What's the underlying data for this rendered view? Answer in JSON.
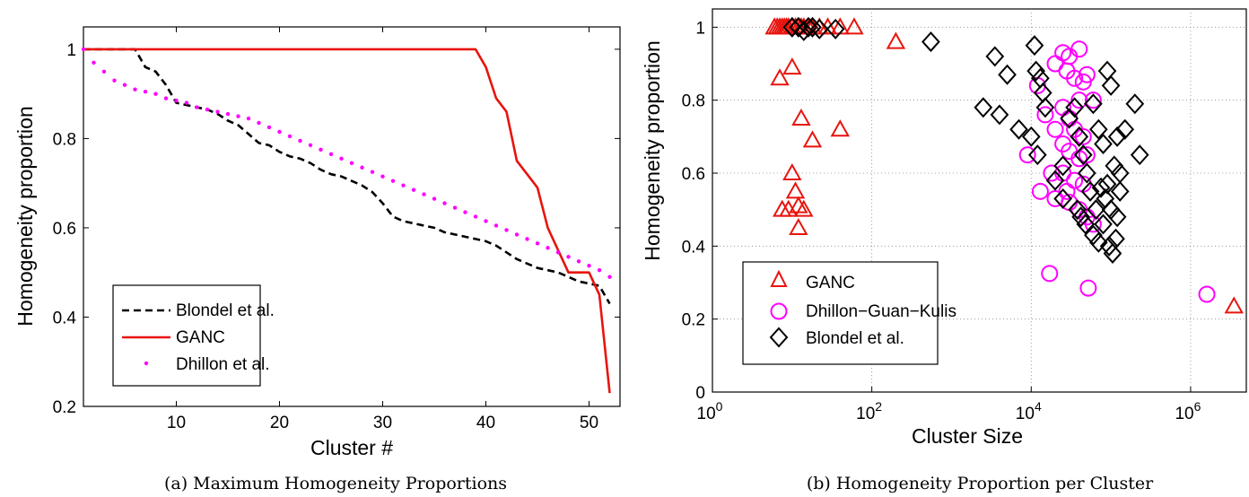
{
  "chart_data": [
    {
      "type": "line",
      "caption": "(a) Maximum Homogeneity Proportions",
      "xlabel": "Cluster #",
      "ylabel": "Homogeneity proportion",
      "xlim": [
        1,
        53
      ],
      "ylim": [
        0.2,
        1.05
      ],
      "xticks": [
        "10",
        "20",
        "30",
        "40",
        "50"
      ],
      "yticks": [
        "0.2",
        "0.4",
        "0.6",
        "0.8",
        "1"
      ],
      "legend_position": "lower-left",
      "series": [
        {
          "name": "Blondel et al.",
          "style": "dashed",
          "color": "#000000",
          "x": [
            1,
            2,
            3,
            4,
            5,
            6,
            7,
            8,
            9,
            10,
            11,
            12,
            13,
            14,
            15,
            16,
            17,
            18,
            19,
            20,
            21,
            22,
            23,
            24,
            25,
            26,
            27,
            28,
            29,
            30,
            31,
            32,
            33,
            34,
            35,
            36,
            37,
            38,
            39,
            40,
            41,
            42,
            43,
            44,
            45,
            46,
            47,
            48,
            49,
            50,
            51,
            52
          ],
          "values": [
            1.0,
            1.0,
            1.0,
            1.0,
            1.0,
            1.0,
            0.96,
            0.95,
            0.92,
            0.88,
            0.875,
            0.87,
            0.865,
            0.855,
            0.84,
            0.83,
            0.81,
            0.79,
            0.785,
            0.77,
            0.76,
            0.755,
            0.745,
            0.73,
            0.72,
            0.715,
            0.705,
            0.695,
            0.68,
            0.655,
            0.625,
            0.615,
            0.61,
            0.605,
            0.6,
            0.59,
            0.585,
            0.58,
            0.575,
            0.57,
            0.56,
            0.545,
            0.53,
            0.52,
            0.51,
            0.505,
            0.5,
            0.49,
            0.48,
            0.475,
            0.47,
            0.43
          ]
        },
        {
          "name": "GANC",
          "style": "solid",
          "color": "#e8140e",
          "x": [
            1,
            5,
            10,
            20,
            30,
            38,
            39,
            40,
            41,
            42,
            43,
            44,
            45,
            46,
            47,
            48,
            49,
            50,
            51,
            52
          ],
          "values": [
            1.0,
            1.0,
            1.0,
            1.0,
            1.0,
            1.0,
            1.0,
            0.96,
            0.89,
            0.86,
            0.75,
            0.72,
            0.69,
            0.6,
            0.55,
            0.5,
            0.5,
            0.5,
            0.45,
            0.23
          ]
        },
        {
          "name": "Dhillon et al.",
          "style": "dotted",
          "color": "#ff00ff",
          "x": [
            1,
            2,
            3,
            4,
            5,
            6,
            7,
            8,
            9,
            10,
            11,
            12,
            13,
            14,
            15,
            16,
            17,
            18,
            19,
            20,
            21,
            22,
            23,
            24,
            25,
            26,
            27,
            28,
            29,
            30,
            31,
            32,
            33,
            34,
            35,
            36,
            37,
            38,
            39,
            40,
            41,
            42,
            43,
            44,
            45,
            46,
            47,
            48,
            49,
            50,
            51,
            52
          ],
          "values": [
            1.0,
            0.97,
            0.95,
            0.93,
            0.92,
            0.91,
            0.905,
            0.9,
            0.89,
            0.885,
            0.88,
            0.87,
            0.865,
            0.86,
            0.855,
            0.85,
            0.845,
            0.835,
            0.825,
            0.815,
            0.805,
            0.795,
            0.785,
            0.775,
            0.765,
            0.755,
            0.745,
            0.735,
            0.725,
            0.715,
            0.705,
            0.695,
            0.685,
            0.675,
            0.665,
            0.655,
            0.645,
            0.635,
            0.625,
            0.615,
            0.605,
            0.595,
            0.585,
            0.575,
            0.565,
            0.555,
            0.545,
            0.535,
            0.525,
            0.515,
            0.505,
            0.49
          ]
        }
      ]
    },
    {
      "type": "scatter",
      "caption": "(b) Homogeneity Proportion per Cluster",
      "xlabel": "Cluster Size",
      "ylabel": "Homogeneity proportion",
      "xscale": "log",
      "xlim": [
        1,
        5000000
      ],
      "ylim": [
        0,
        1.05
      ],
      "grid": true,
      "xticks": [
        {
          "base": "10",
          "exp": "0",
          "value": 1
        },
        {
          "base": "10",
          "exp": "2",
          "value": 100
        },
        {
          "base": "10",
          "exp": "4",
          "value": 10000
        },
        {
          "base": "10",
          "exp": "6",
          "value": 1000000
        }
      ],
      "yticks": [
        "0",
        "0.2",
        "0.4",
        "0.6",
        "0.8",
        "1"
      ],
      "legend_position": "lower-left",
      "series": [
        {
          "name": "GANC",
          "marker": "triangle",
          "color": "#e8140e",
          "points": [
            [
              6,
              1.0
            ],
            [
              6.5,
              1.0
            ],
            [
              7,
              1.0
            ],
            [
              7.5,
              1.0
            ],
            [
              8,
              1.0
            ],
            [
              8.5,
              1.0
            ],
            [
              9,
              1.0
            ],
            [
              10,
              1.0
            ],
            [
              11,
              1.0
            ],
            [
              12,
              1.0
            ],
            [
              13,
              1.0
            ],
            [
              14,
              1.0
            ],
            [
              16,
              1.0
            ],
            [
              18,
              1.0
            ],
            [
              22,
              1.0
            ],
            [
              28,
              1.0
            ],
            [
              40,
              1.0
            ],
            [
              60,
              1.0
            ],
            [
              200,
              0.96
            ],
            [
              7,
              0.86
            ],
            [
              10,
              0.89
            ],
            [
              13,
              0.75
            ],
            [
              18,
              0.69
            ],
            [
              40,
              0.72
            ],
            [
              10,
              0.6
            ],
            [
              11,
              0.55
            ],
            [
              7.5,
              0.5
            ],
            [
              9,
              0.5
            ],
            [
              12,
              0.51
            ],
            [
              14,
              0.5
            ],
            [
              12,
              0.45
            ],
            [
              3500000,
              0.235
            ]
          ]
        },
        {
          "name": "Dhillon−Guan−Kulis",
          "marker": "circle",
          "color": "#ff00ff",
          "points": [
            [
              20000,
              0.9
            ],
            [
              25000,
              0.93
            ],
            [
              30000,
              0.92
            ],
            [
              40000,
              0.94
            ],
            [
              28000,
              0.88
            ],
            [
              35000,
              0.86
            ],
            [
              45000,
              0.85
            ],
            [
              50000,
              0.87
            ],
            [
              60000,
              0.8
            ],
            [
              40000,
              0.8
            ],
            [
              12000,
              0.84
            ],
            [
              15000,
              0.76
            ],
            [
              25000,
              0.78
            ],
            [
              30000,
              0.75
            ],
            [
              20000,
              0.72
            ],
            [
              35000,
              0.72
            ],
            [
              45000,
              0.7
            ],
            [
              25000,
              0.68
            ],
            [
              30000,
              0.66
            ],
            [
              40000,
              0.64
            ],
            [
              50000,
              0.65
            ],
            [
              9000,
              0.65
            ],
            [
              18000,
              0.6
            ],
            [
              25000,
              0.6
            ],
            [
              35000,
              0.58
            ],
            [
              45000,
              0.57
            ],
            [
              13000,
              0.55
            ],
            [
              20000,
              0.53
            ],
            [
              30000,
              0.52
            ],
            [
              40000,
              0.5
            ],
            [
              50000,
              0.48
            ],
            [
              60000,
              0.46
            ],
            [
              28000,
              0.55
            ],
            [
              17000,
              0.325
            ],
            [
              52000,
              0.285
            ],
            [
              1600000,
              0.268
            ]
          ]
        },
        {
          "name": "Blondel et al.",
          "marker": "diamond",
          "color": "#000000",
          "points": [
            [
              10,
              1.0
            ],
            [
              12,
              1.0
            ],
            [
              14,
              0.99
            ],
            [
              16,
              1.0
            ],
            [
              18,
              1.0
            ],
            [
              22,
              0.995
            ],
            [
              35,
              0.995
            ],
            [
              550,
              0.96
            ],
            [
              3500,
              0.92
            ],
            [
              5000,
              0.87
            ],
            [
              2500,
              0.78
            ],
            [
              4000,
              0.76
            ],
            [
              7000,
              0.72
            ],
            [
              11000,
              0.95
            ],
            [
              11500,
              0.88
            ],
            [
              13000,
              0.86
            ],
            [
              14000,
              0.82
            ],
            [
              15000,
              0.78
            ],
            [
              10000,
              0.7
            ],
            [
              12000,
              0.65
            ],
            [
              20000,
              0.58
            ],
            [
              25000,
              0.53
            ],
            [
              30000,
              0.75
            ],
            [
              35000,
              0.78
            ],
            [
              40000,
              0.7
            ],
            [
              45000,
              0.65
            ],
            [
              50000,
              0.6
            ],
            [
              55000,
              0.55
            ],
            [
              60000,
              0.79
            ],
            [
              70000,
              0.72
            ],
            [
              80000,
              0.68
            ],
            [
              90000,
              0.88
            ],
            [
              100000,
              0.84
            ],
            [
              120000,
              0.7
            ],
            [
              150000,
              0.72
            ],
            [
              200000,
              0.79
            ],
            [
              230000,
              0.65
            ],
            [
              110000,
              0.62
            ],
            [
              130000,
              0.6
            ],
            [
              90000,
              0.57
            ],
            [
              85000,
              0.53
            ],
            [
              100000,
              0.5
            ],
            [
              120000,
              0.48
            ],
            [
              80000,
              0.46
            ],
            [
              60000,
              0.43
            ],
            [
              70000,
              0.41
            ],
            [
              95000,
              0.4
            ],
            [
              105000,
              0.38
            ],
            [
              115000,
              0.42
            ],
            [
              130000,
              0.55
            ],
            [
              38000,
              0.5
            ],
            [
              42000,
              0.48
            ],
            [
              48000,
              0.46
            ],
            [
              65000,
              0.5
            ],
            [
              75000,
              0.56
            ],
            [
              25000,
              0.62
            ]
          ]
        }
      ]
    }
  ]
}
